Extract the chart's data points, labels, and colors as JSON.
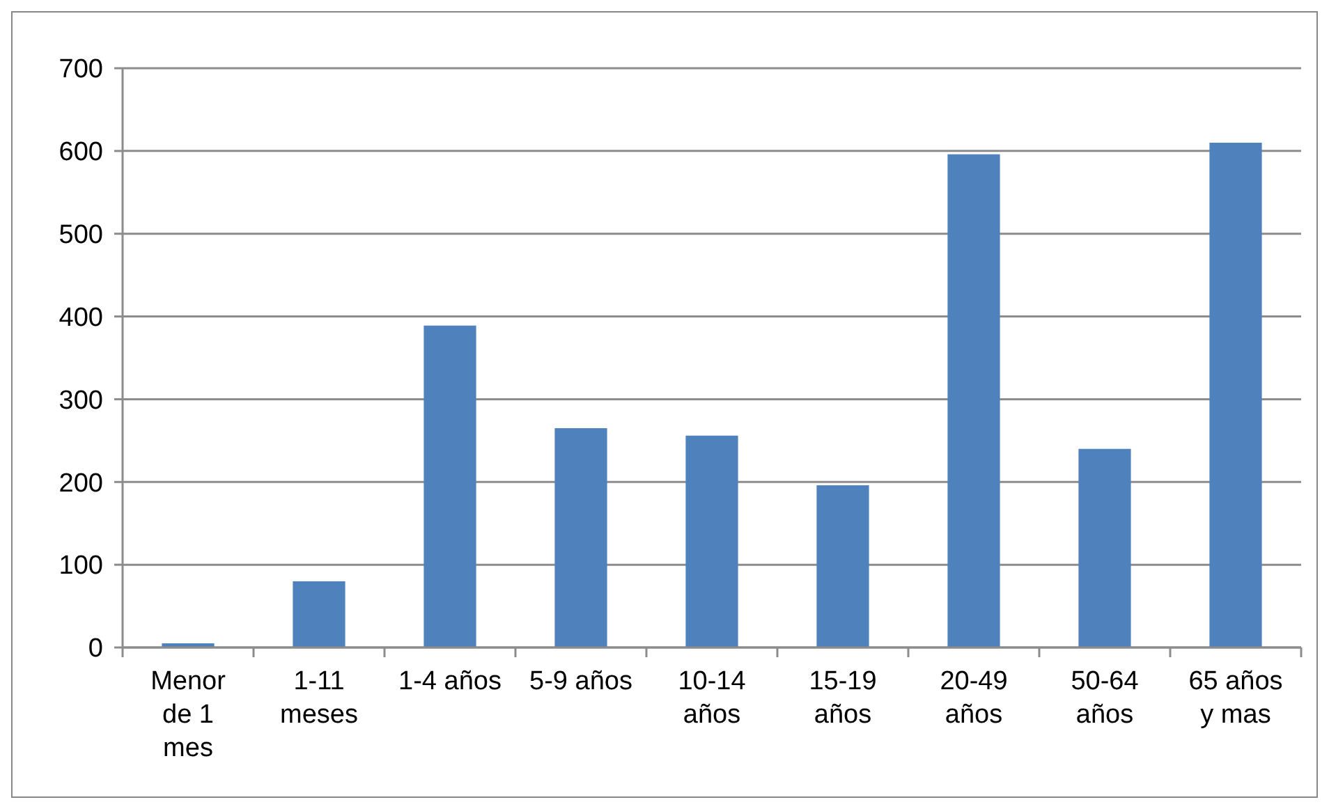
{
  "chart_data": {
    "type": "bar",
    "categories": [
      "Menor de 1 mes",
      "1-11 meses",
      "1-4 años",
      "5-9 años",
      "10-14 años",
      "15-19 años",
      "20-49 años",
      "50-64 años",
      "65 años y mas"
    ],
    "values": [
      5,
      80,
      389,
      265,
      256,
      196,
      596,
      240,
      610
    ],
    "color": "#4f81bd",
    "ylim": [
      0,
      700
    ],
    "yticks": [
      0,
      100,
      200,
      300,
      400,
      500,
      600,
      700
    ],
    "grid": "y"
  }
}
